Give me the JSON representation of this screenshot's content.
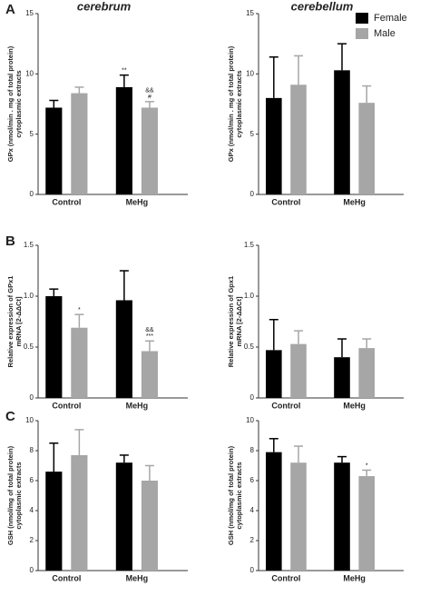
{
  "legend": [
    {
      "name": "Female",
      "color": "#000000"
    },
    {
      "name": "Male",
      "color": "#a6a6a6"
    }
  ],
  "chart_data": [
    {
      "type": "bar",
      "panel": "A",
      "title": "cerebrum",
      "ylabel": [
        "GPx (nmol/min . mg of total protein)",
        "cytoplasmic extracts"
      ],
      "categories": [
        "Control",
        "MeHg"
      ],
      "ylim": [
        0,
        15
      ],
      "yticks": [
        0,
        5,
        10,
        15
      ],
      "series": [
        {
          "color": "#000000",
          "values": [
            7.2,
            8.9
          ],
          "errors": [
            0.6,
            1.0
          ],
          "annotations": [
            null,
            [
              "**"
            ]
          ]
        },
        {
          "color": "#a6a6a6",
          "values": [
            8.4,
            7.2
          ],
          "errors": [
            0.5,
            0.5
          ],
          "annotations": [
            null,
            [
              "&&",
              "#"
            ]
          ]
        }
      ]
    },
    {
      "type": "bar",
      "title": "cerebellum",
      "ylabel": [
        "GPx (nmol/min . mg of total protein)",
        "cytoplasmic extracts"
      ],
      "categories": [
        "Control",
        "MeHg"
      ],
      "ylim": [
        0,
        15
      ],
      "yticks": [
        0,
        5,
        10,
        15
      ],
      "series": [
        {
          "color": "#000000",
          "values": [
            8.0,
            10.3
          ],
          "errors": [
            3.4,
            2.2
          ]
        },
        {
          "color": "#a6a6a6",
          "values": [
            9.1,
            7.6
          ],
          "errors": [
            2.4,
            1.4
          ]
        }
      ]
    },
    {
      "type": "bar",
      "panel": "B",
      "ylabel": [
        "Relative expression of GPx1",
        "mRNA [2-ΔΔCt]"
      ],
      "categories": [
        "Control",
        "MeHg"
      ],
      "ylim": [
        0,
        1.5
      ],
      "yticks": [
        0,
        0.5,
        {
          "value": 1,
          "label": "1.0"
        },
        {
          "value": 1.5,
          "label": "1.5"
        }
      ],
      "series": [
        {
          "color": "#000000",
          "values": [
            1.0,
            0.96
          ],
          "errors": [
            0.07,
            0.29
          ]
        },
        {
          "color": "#a6a6a6",
          "values": [
            0.69,
            0.46
          ],
          "errors": [
            0.13,
            0.1
          ],
          "annotations": [
            [
              "*"
            ],
            [
              "&&",
              "***"
            ]
          ]
        }
      ]
    },
    {
      "type": "bar",
      "ylabel": [
        "Relative expression of Gpx1",
        "mRNA [2-ΔΔCt]"
      ],
      "categories": [
        "Control",
        "MeHg"
      ],
      "ylim": [
        0,
        1.5
      ],
      "yticks": [
        0,
        0.5,
        {
          "value": 1,
          "label": "1.0"
        },
        {
          "value": 1.5,
          "label": "1.5"
        }
      ],
      "series": [
        {
          "color": "#000000",
          "values": [
            0.47,
            0.4
          ],
          "errors": [
            0.3,
            0.18
          ]
        },
        {
          "color": "#a6a6a6",
          "values": [
            0.53,
            0.49
          ],
          "errors": [
            0.13,
            0.09
          ]
        }
      ]
    },
    {
      "type": "bar",
      "panel": "C",
      "ylabel": [
        "GSH (nmol/mg of total protein)",
        "cytoplasmic extracts"
      ],
      "categories": [
        "Control",
        "MeHg"
      ],
      "ylim": [
        0,
        10
      ],
      "yticks": [
        0,
        2,
        4,
        6,
        8,
        10
      ],
      "series": [
        {
          "color": "#000000",
          "values": [
            6.6,
            7.2
          ],
          "errors": [
            1.9,
            0.5
          ]
        },
        {
          "color": "#a6a6a6",
          "values": [
            7.7,
            6.0
          ],
          "errors": [
            1.7,
            1.0
          ]
        }
      ]
    },
    {
      "type": "bar",
      "ylabel": [
        "GSH (nmol/mg of total protein)",
        "cytoplasmic extracts"
      ],
      "categories": [
        "Control",
        "MeHg"
      ],
      "ylim": [
        0,
        10
      ],
      "yticks": [
        0,
        2,
        4,
        6,
        8,
        10
      ],
      "series": [
        {
          "color": "#000000",
          "values": [
            7.9,
            7.2
          ],
          "errors": [
            0.9,
            0.4
          ]
        },
        {
          "color": "#a6a6a6",
          "values": [
            7.2,
            6.3
          ],
          "errors": [
            1.1,
            0.4
          ],
          "annotations": [
            null,
            [
              "*"
            ]
          ]
        }
      ]
    }
  ]
}
